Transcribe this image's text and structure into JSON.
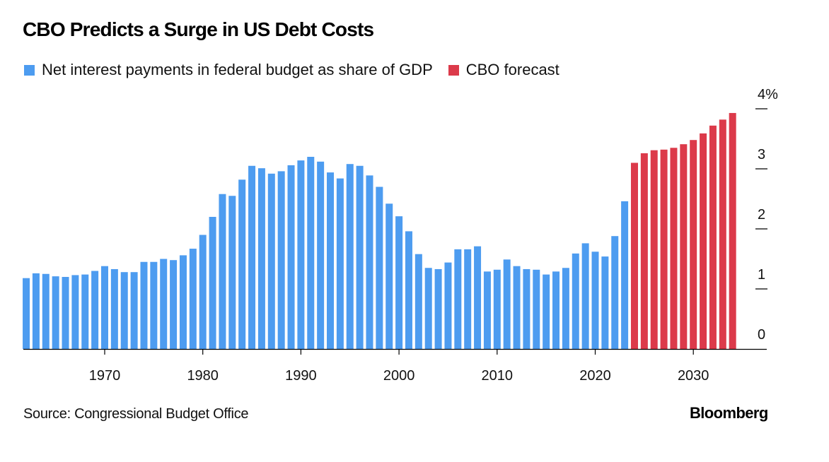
{
  "header": {
    "title": "CBO Predicts a Surge in US Debt Costs"
  },
  "legend": [
    {
      "label": "Net interest payments in federal budget as share of GDP",
      "color": "#4d9cf0"
    },
    {
      "label": "CBO forecast",
      "color": "#dc3a4a"
    }
  ],
  "footer": {
    "source": "Source: Congressional Budget Office",
    "brand": "Bloomberg"
  },
  "chart_data": {
    "type": "bar",
    "title": "CBO Predicts a Surge in US Debt Costs",
    "xlabel": "",
    "ylabel": "",
    "ylim": [
      0,
      4
    ],
    "xlim": [
      1962,
      2034
    ],
    "y_ticks": [
      {
        "value": 0,
        "label": "0"
      },
      {
        "value": 1,
        "label": "1"
      },
      {
        "value": 2,
        "label": "2"
      },
      {
        "value": 3,
        "label": "3"
      },
      {
        "value": 4,
        "label": "4%"
      }
    ],
    "x_ticks": [
      {
        "value": 1970,
        "label": "1970"
      },
      {
        "value": 1980,
        "label": "1980"
      },
      {
        "value": 1990,
        "label": "1990"
      },
      {
        "value": 2000,
        "label": "2000"
      },
      {
        "value": 2010,
        "label": "2010"
      },
      {
        "value": 2020,
        "label": "2020"
      },
      {
        "value": 2030,
        "label": "2030"
      }
    ],
    "y_axis_position": "right",
    "grid": false,
    "legend_position": "top-left",
    "series": [
      {
        "name": "Net interest payments in federal budget as share of GDP",
        "color": "#4d9cf0",
        "x": [
          1962,
          1963,
          1964,
          1965,
          1966,
          1967,
          1968,
          1969,
          1970,
          1971,
          1972,
          1973,
          1974,
          1975,
          1976,
          1977,
          1978,
          1979,
          1980,
          1981,
          1982,
          1983,
          1984,
          1985,
          1986,
          1987,
          1988,
          1989,
          1990,
          1991,
          1992,
          1993,
          1994,
          1995,
          1996,
          1997,
          1998,
          1999,
          2000,
          2001,
          2002,
          2003,
          2004,
          2005,
          2006,
          2007,
          2008,
          2009,
          2010,
          2011,
          2012,
          2013,
          2014,
          2015,
          2016,
          2017,
          2018,
          2019,
          2020,
          2021,
          2022,
          2023
        ],
        "values": [
          1.18,
          1.26,
          1.25,
          1.21,
          1.2,
          1.23,
          1.24,
          1.3,
          1.38,
          1.33,
          1.28,
          1.28,
          1.45,
          1.45,
          1.5,
          1.48,
          1.56,
          1.67,
          1.9,
          2.2,
          2.58,
          2.55,
          2.82,
          3.05,
          3.01,
          2.92,
          2.96,
          3.06,
          3.14,
          3.2,
          3.12,
          2.94,
          2.84,
          3.08,
          3.05,
          2.89,
          2.7,
          2.42,
          2.21,
          1.96,
          1.58,
          1.35,
          1.33,
          1.44,
          1.66,
          1.66,
          1.71,
          1.29,
          1.32,
          1.49,
          1.38,
          1.33,
          1.32,
          1.24,
          1.29,
          1.35,
          1.59,
          1.76,
          1.62,
          1.54,
          1.88,
          2.46
        ]
      },
      {
        "name": "CBO forecast",
        "color": "#dc3a4a",
        "x": [
          2024,
          2025,
          2026,
          2027,
          2028,
          2029,
          2030,
          2031,
          2032,
          2033,
          2034
        ],
        "values": [
          3.1,
          3.26,
          3.31,
          3.32,
          3.35,
          3.41,
          3.48,
          3.59,
          3.72,
          3.82,
          3.93
        ]
      }
    ]
  }
}
